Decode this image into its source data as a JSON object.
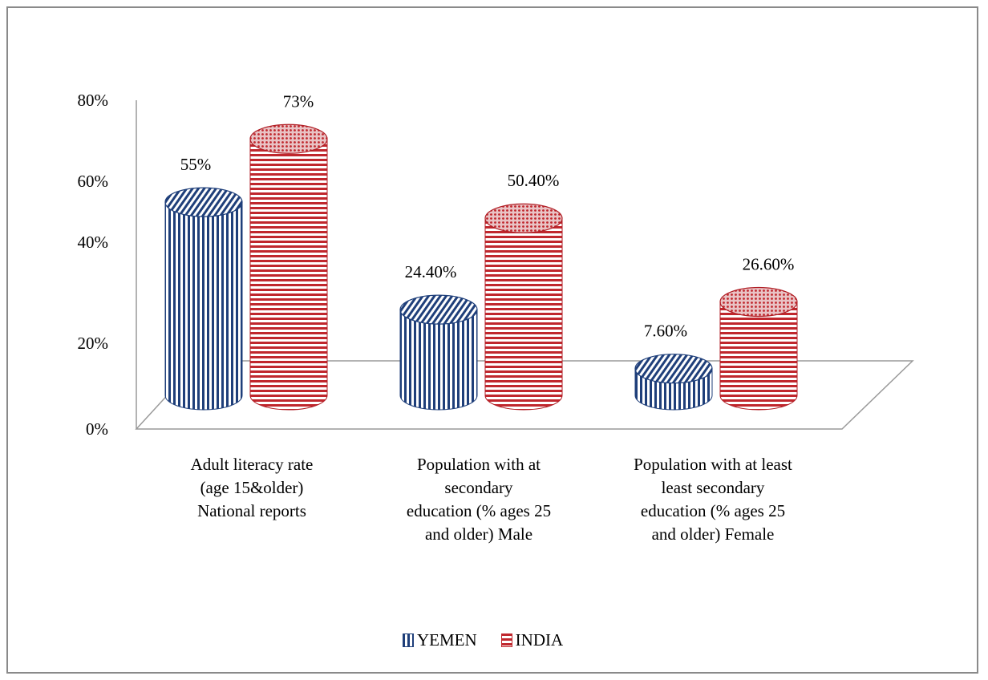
{
  "chart_data": {
    "type": "bar",
    "categories": [
      [
        "Adult literacy rate",
        "(age 15&older)",
        "National reports"
      ],
      [
        "Population with at",
        "secondary",
        "education (% ages 25",
        "and older) Male"
      ],
      [
        "Population with at least",
        "least secondary",
        "education (% ages 25",
        "and older) Female"
      ]
    ],
    "series": [
      {
        "name": "YEMEN",
        "values": [
          55,
          24.4,
          7.6
        ],
        "labels": [
          "55%",
          "24.40%",
          "7.60%"
        ],
        "color": "#1f3f7a"
      },
      {
        "name": "INDIA",
        "values": [
          73,
          50.4,
          26.6
        ],
        "labels": [
          "73%",
          "50.40%",
          "26.60%"
        ],
        "color": "#c0272d"
      }
    ],
    "y_ticks": [
      "0%",
      "20%",
      "40%",
      "60%",
      "80%"
    ],
    "ylim": [
      0,
      80
    ],
    "legend_placement": "bottom",
    "grid": false
  }
}
